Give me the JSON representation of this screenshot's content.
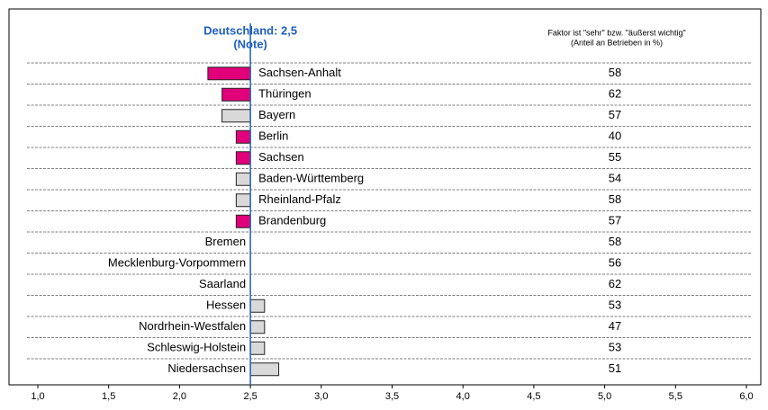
{
  "chart_data": {
    "type": "bar",
    "orientation": "horizontal",
    "header": "Faktor ist \"sehr\" bzw. \"äußerst wichtig\"",
    "subheader": "(Anteil an Betrieben in %)",
    "reference": {
      "value": 2.5,
      "label": "Deutschland: 2,5",
      "sublabel": "(Note)",
      "color": "#1f5fbf"
    },
    "categories": [
      "Sachsen-Anhalt",
      "Thüringen",
      "Bayern",
      "Berlin",
      "Sachsen",
      "Baden-Württemberg",
      "Rheinland-Pfalz",
      "Brandenburg",
      "Bremen",
      "Mecklenburg-Vorpommern",
      "Saarland",
      "Hessen",
      "Nordrhein-Westfalen",
      "Schleswig-Holstein",
      "Niedersachsen"
    ],
    "values": [
      2.2,
      2.3,
      2.3,
      2.4,
      2.4,
      2.4,
      2.4,
      2.4,
      2.5,
      2.5,
      2.5,
      2.6,
      2.6,
      2.6,
      2.7
    ],
    "colors": [
      "#e2007a",
      "#e2007a",
      "#d9d9d9",
      "#e2007a",
      "#e2007a",
      "#d9d9d9",
      "#d9d9d9",
      "#e2007a",
      "#d9d9d9",
      "#d9d9d9",
      "#d9d9d9",
      "#d9d9d9",
      "#d9d9d9",
      "#d9d9d9",
      "#d9d9d9"
    ],
    "shares": [
      58,
      62,
      57,
      40,
      55,
      54,
      58,
      57,
      58,
      56,
      62,
      53,
      47,
      53,
      51
    ],
    "xlim": [
      1.0,
      6.0
    ],
    "xticks": [
      {
        "value": 1.0,
        "label": "1,0"
      },
      {
        "value": 1.5,
        "label": "1,5"
      },
      {
        "value": 2.0,
        "label": "2,0"
      },
      {
        "value": 2.5,
        "label": "2,5"
      },
      {
        "value": 3.0,
        "label": "3,0"
      },
      {
        "value": 3.5,
        "label": "3,5"
      },
      {
        "value": 4.0,
        "label": "4,0"
      },
      {
        "value": 4.5,
        "label": "4,5"
      },
      {
        "value": 5.0,
        "label": "5,0"
      },
      {
        "value": 5.5,
        "label": "5,5"
      },
      {
        "value": 6.0,
        "label": "6,0"
      }
    ]
  }
}
